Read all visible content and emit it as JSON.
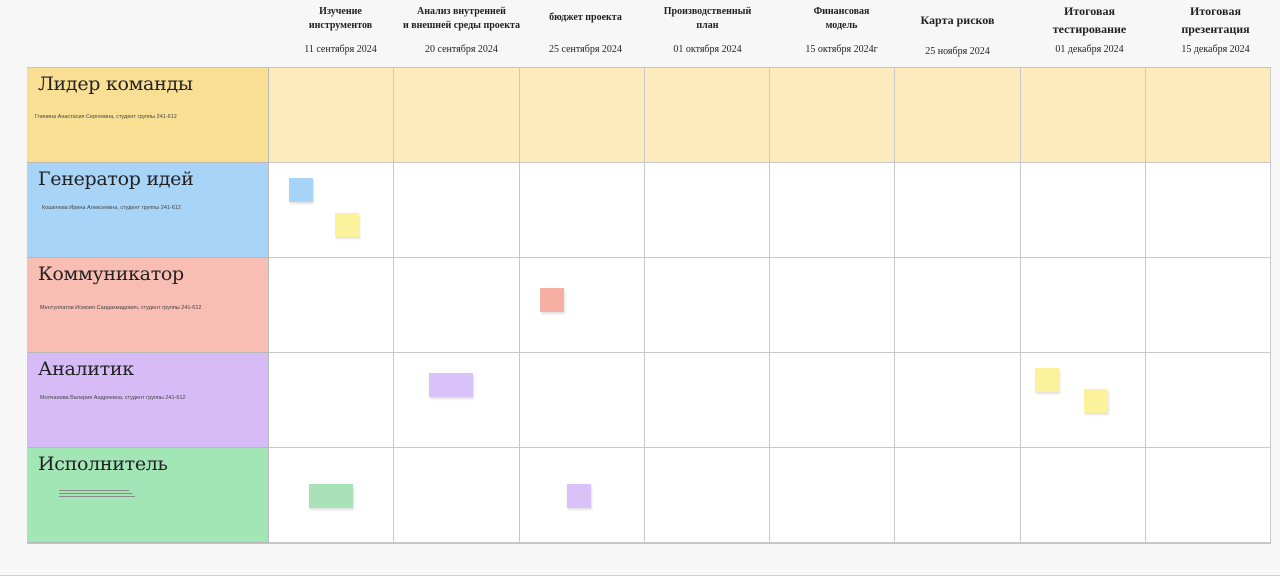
{
  "columns": [
    {
      "title": "Изучение\nинструментов",
      "date": "11 сентября 2024",
      "big": false
    },
    {
      "title": "Анализ внутренней\nи внешней среды проекта",
      "date": "20 сентября 2024",
      "big": false
    },
    {
      "title": "бюджет проекта",
      "date": "25 сентября 2024",
      "big": false
    },
    {
      "title": "Производственный\nплан",
      "date": "01 октября 2024",
      "big": false
    },
    {
      "title": "Финансовая\nмодель",
      "date": "15 октября 2024г",
      "big": false
    },
    {
      "title": "Карта рисков",
      "date": "25 ноября 2024",
      "big": true
    },
    {
      "title": "Итоговая\nтестирование",
      "date": "01 декабря 2024",
      "big": true
    },
    {
      "title": "Итоговая\nпрезентация",
      "date": "15 декабря 2024",
      "big": true
    }
  ],
  "rows": [
    {
      "role": "Лидер команды",
      "member": "Глинина Анастасия Сергеевна, студент группы 241-612",
      "color": "#f8df94",
      "cell_color": "#feebbd"
    },
    {
      "role": "Генератор идей",
      "member": "Кошелева Ирина Алексеевна, студент группы 241-612",
      "color": "#a8d4f8",
      "cell_color": "#ffffff"
    },
    {
      "role": "Коммуникатор",
      "member": "Ментуллатов Исмоил Саидахмадович, студент группы 241-612",
      "color": "#f8bdb3",
      "cell_color": "#ffffff"
    },
    {
      "role": "Аналитик",
      "member": "Молчанова Валерия Андреевна, студент группы 241-612",
      "color": "#d6bbf7",
      "cell_color": "#ffffff"
    },
    {
      "role": "Исполнитель",
      "member": "",
      "color": "#a3e6b6",
      "cell_color": "#ffffff"
    }
  ],
  "stickies": [
    {
      "row": 1,
      "col": 0,
      "color": "#a6d3f6"
    },
    {
      "row": 1,
      "col": 0,
      "color": "#fbf29b"
    },
    {
      "row": 2,
      "col": 2,
      "color": "#f6b0a3"
    },
    {
      "row": 3,
      "col": 1,
      "color": "#d8c2f9"
    },
    {
      "row": 3,
      "col": 6,
      "color": "#fbf29b"
    },
    {
      "row": 3,
      "col": 6,
      "color": "#fbf29b"
    },
    {
      "row": 4,
      "col": 0,
      "color": "#a9e2b7"
    },
    {
      "row": 4,
      "col": 2,
      "color": "#d8c2f9"
    }
  ]
}
